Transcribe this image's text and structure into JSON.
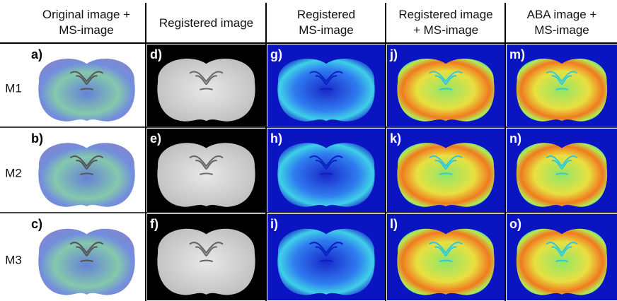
{
  "headers": [
    [
      "Original image +",
      "MS-image"
    ],
    [
      "Registered image"
    ],
    [
      "Registered",
      "MS-image"
    ],
    [
      "Registered image",
      "+ MS-image"
    ],
    [
      "ABA image +",
      "MS-image"
    ]
  ],
  "rows": [
    {
      "label": "M1",
      "panels": [
        "a)",
        "d)",
        "g)",
        "j)",
        "m)"
      ]
    },
    {
      "label": "M2",
      "panels": [
        "b)",
        "e)",
        "h)",
        "k)",
        "n)"
      ]
    },
    {
      "label": "M3",
      "panels": [
        "c)",
        "f)",
        "i)",
        "l)",
        "o)"
      ]
    }
  ]
}
